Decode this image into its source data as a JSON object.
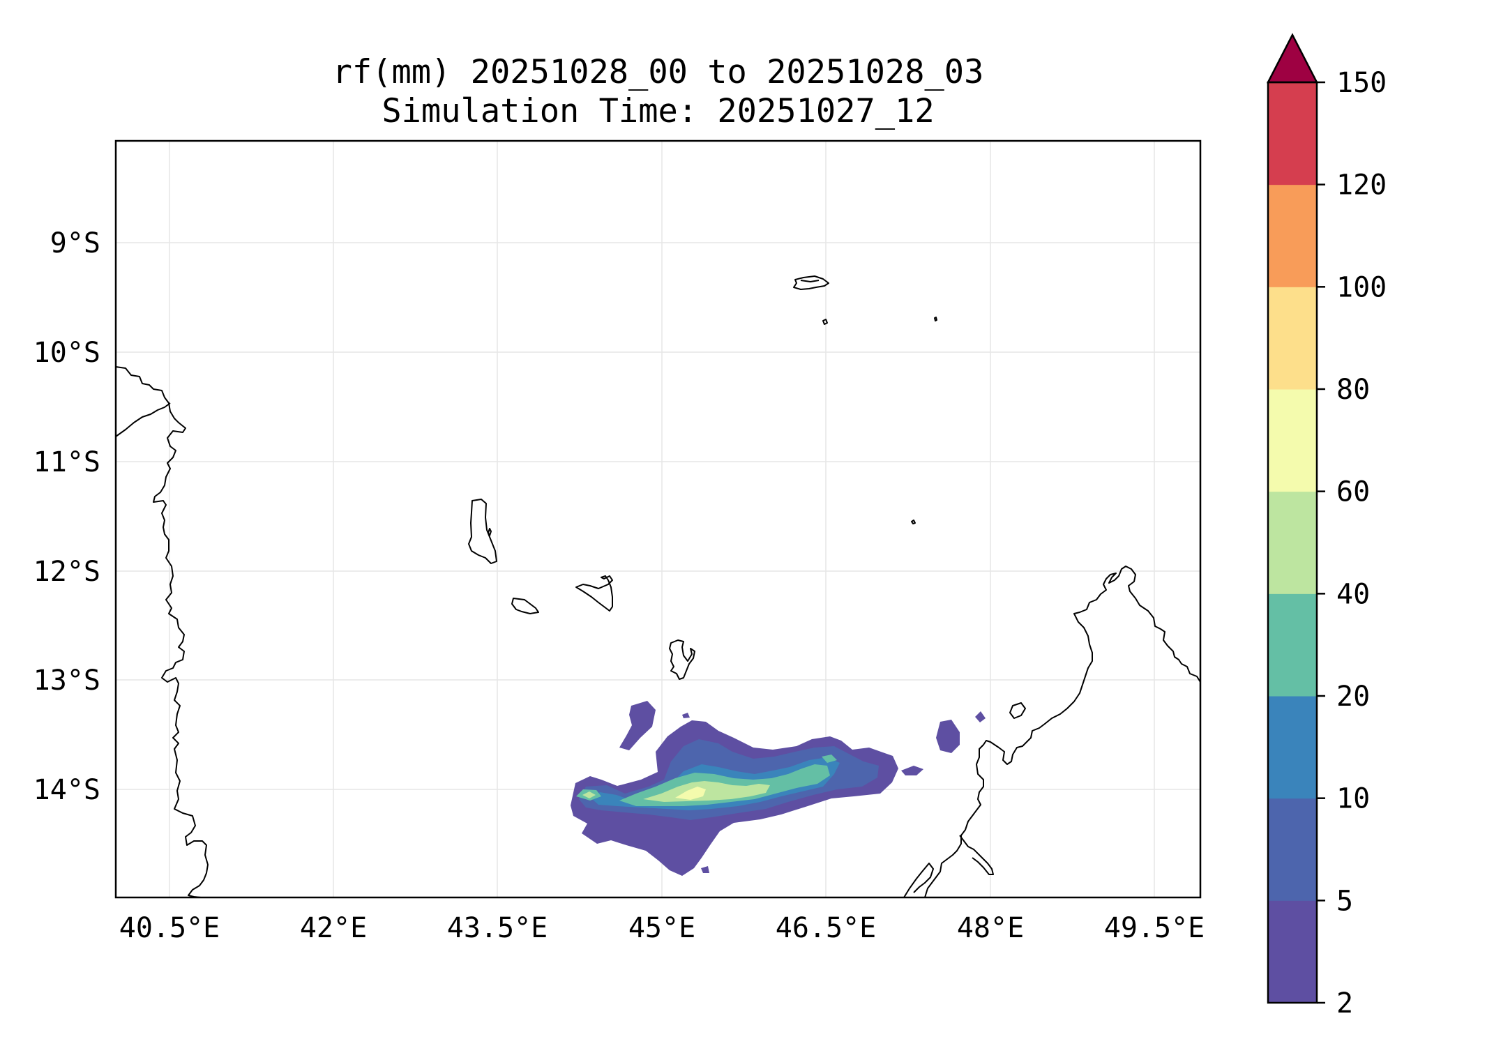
{
  "title": {
    "line1": "rf(mm) 20251028_00 to 20251028_03",
    "line2": "Simulation Time: 20251027_12"
  },
  "map": {
    "lon_range": [
      40.1,
      50.0
    ],
    "lat_range": [
      -14.95,
      -8.05
    ],
    "x_ticks": [
      "40.5°E",
      "42°E",
      "43.5°E",
      "45°E",
      "46.5°E",
      "48°E",
      "49.5°E"
    ],
    "x_tick_values": [
      40.5,
      42.0,
      43.5,
      45.0,
      46.5,
      48.0,
      49.5
    ],
    "y_ticks": [
      "9°S",
      "10°S",
      "11°S",
      "12°S",
      "13°S",
      "14°S"
    ],
    "y_tick_values": [
      -9,
      -10,
      -11,
      -12,
      -13,
      -14
    ],
    "gridlines": true,
    "coastline_color": "#000000",
    "rain_core_location": "approx. 45.3°E, 14.1°S"
  },
  "colorbar": {
    "levels": [
      "2",
      "5",
      "10",
      "20",
      "40",
      "60",
      "80",
      "100",
      "120",
      "150"
    ],
    "colors": [
      "#5e4fa2",
      "#4d65ad",
      "#3a84bb",
      "#64bfa5",
      "#bde5a0",
      "#f4fbad",
      "#fddf8b",
      "#f89c59",
      "#d53e4f"
    ],
    "extend_color": "#9e0142",
    "extend": "max"
  }
}
